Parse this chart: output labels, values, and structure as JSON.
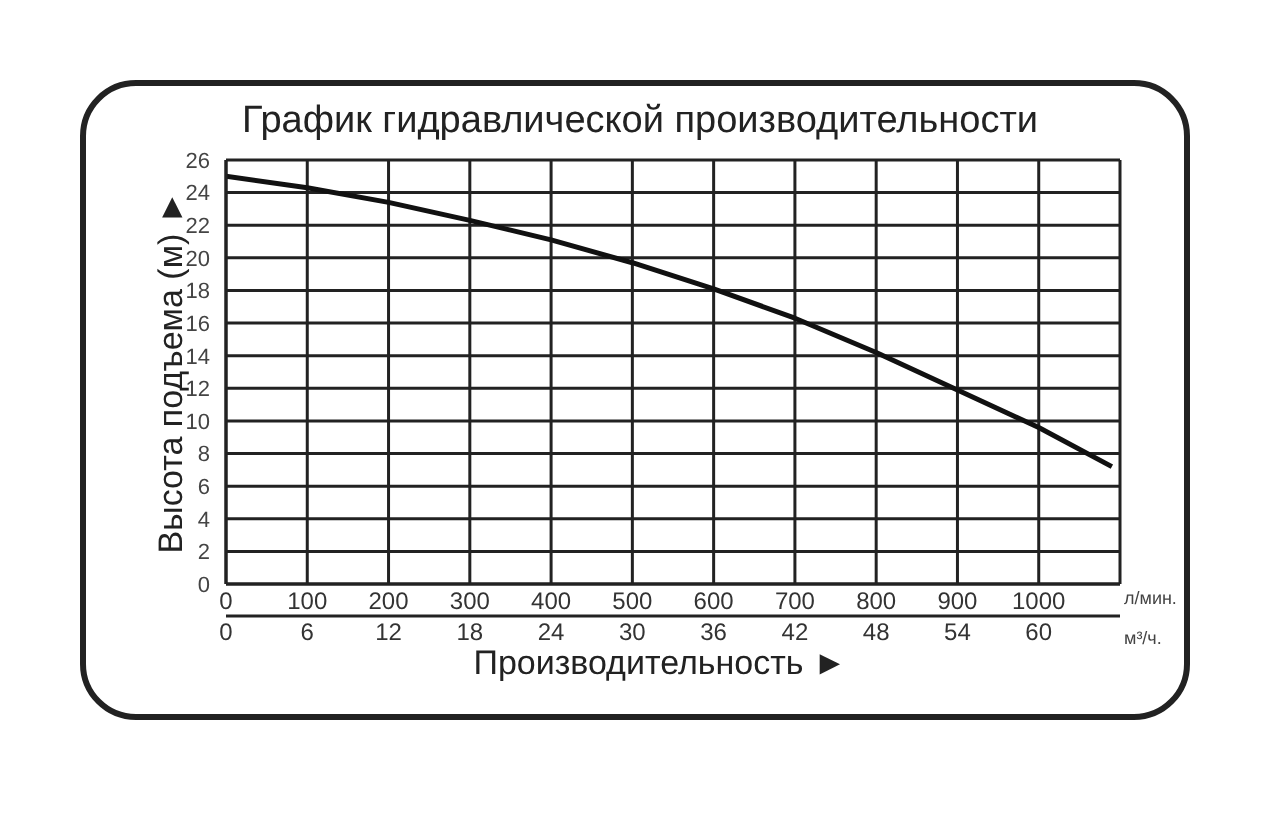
{
  "chart_data": {
    "type": "line",
    "title": "График гидравлической производительности",
    "xlabel": "Производительность ►",
    "ylabel": "Высота подъема (м) ►",
    "x": [
      0,
      100,
      200,
      300,
      400,
      500,
      600,
      700,
      800,
      900,
      1000,
      1090
    ],
    "series": [
      {
        "color": "#111111",
        "values": [
          25,
          24.3,
          23.4,
          22.3,
          21.1,
          19.7,
          18.1,
          16.3,
          14.2,
          11.9,
          9.6,
          7.2
        ]
      }
    ],
    "xlim": [
      0,
      1100
    ],
    "xticks": [
      0,
      100,
      200,
      300,
      400,
      500,
      600,
      700,
      800,
      900,
      1000
    ],
    "x2lim": [
      0,
      66
    ],
    "x2ticks": [
      0,
      6,
      12,
      18,
      24,
      30,
      36,
      42,
      48,
      54,
      60
    ],
    "ylim": [
      0,
      26
    ],
    "yticks": [
      0,
      2,
      4,
      6,
      8,
      10,
      12,
      14,
      16,
      18,
      20,
      22,
      24,
      26
    ],
    "grid": true,
    "annotations": [
      "л/мин.",
      "м³/ч."
    ]
  }
}
